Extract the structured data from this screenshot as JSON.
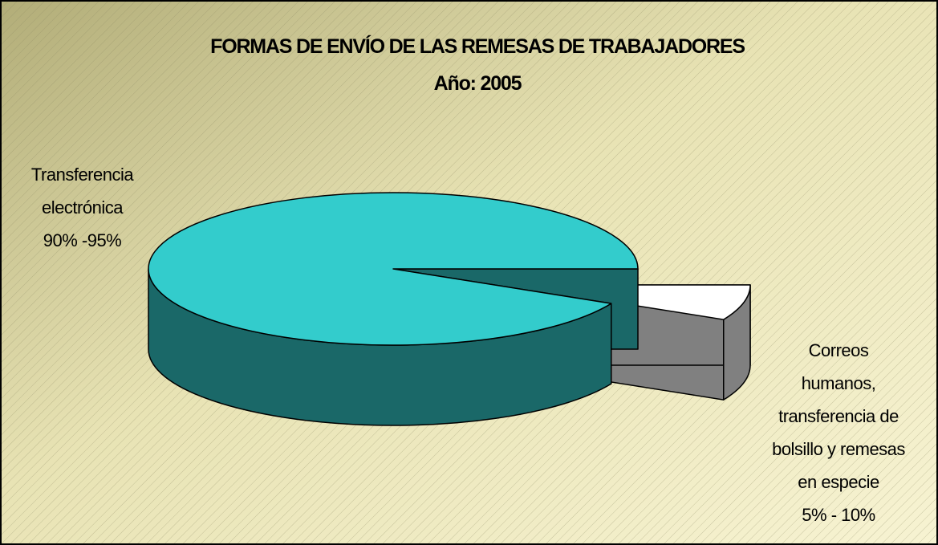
{
  "chart_data": {
    "type": "pie3d",
    "title": "FORMAS DE ENVÍO DE LAS REMESAS DE TRABAJADORES",
    "subtitle": "Año: 2005",
    "categories": [
      "Transferencia\nelectrónica",
      "Correos\nhumanos,\ntransferencia de\nbolsillo y remesas\nen especie"
    ],
    "values": [
      92.5,
      7.5
    ],
    "value_labels": [
      "90% -95%",
      "5% - 10%"
    ],
    "colors": [
      "#33cccc",
      "#ffffff"
    ],
    "side_colors": [
      "#1a6868",
      "#808080"
    ]
  }
}
